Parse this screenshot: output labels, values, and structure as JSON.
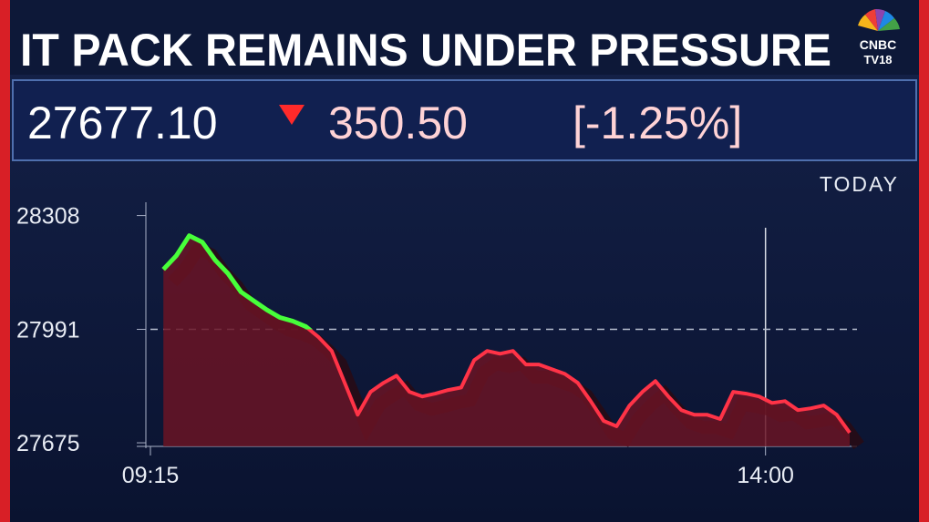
{
  "header": {
    "title": "IT PACK REMAINS UNDER PRESSURE",
    "logo": "CNBC",
    "logo_sub": "TV18"
  },
  "quote": {
    "value": "27677.10",
    "change": "350.50",
    "percent": "[-1.25%]"
  },
  "chart_data": {
    "type": "line",
    "subtitle": "TODAY",
    "x": [
      "09:21",
      "09:27",
      "09:33",
      "09:39",
      "09:45",
      "09:51",
      "09:57",
      "10:03",
      "10:09",
      "10:15",
      "10:21",
      "10:27",
      "10:33",
      "10:39",
      "10:45",
      "10:51",
      "10:57",
      "11:03",
      "11:09",
      "11:15",
      "11:21",
      "11:27",
      "11:33",
      "11:39",
      "11:45",
      "11:51",
      "11:57",
      "12:03",
      "12:09",
      "12:15",
      "12:21",
      "12:27",
      "12:33",
      "12:39",
      "12:45",
      "12:51",
      "12:57",
      "13:03",
      "13:09",
      "13:15",
      "13:21",
      "13:27",
      "13:33",
      "13:39",
      "13:45",
      "13:51",
      "13:57",
      "14:03",
      "14:09",
      "14:15",
      "14:21",
      "14:27",
      "14:33",
      "14:39"
    ],
    "values": [
      28158,
      28196,
      28252,
      28234,
      28184,
      28146,
      28095,
      28070,
      28045,
      28024,
      28014,
      27999,
      27969,
      27931,
      27842,
      27753,
      27817,
      27842,
      27862,
      27817,
      27804,
      27812,
      27822,
      27829,
      27905,
      27931,
      27923,
      27931,
      27893,
      27893,
      27880,
      27867,
      27842,
      27791,
      27736,
      27721,
      27779,
      27817,
      27847,
      27804,
      27766,
      27753,
      27753,
      27741,
      27817,
      27812,
      27804,
      27786,
      27791,
      27766,
      27771,
      27779,
      27753,
      27703
    ],
    "color": "#ff3347",
    "above_color": "#47ff3a",
    "fill_color": "#6a1424",
    "reference_line": 27991,
    "xlim": [
      "09:15",
      "14:39"
    ],
    "xticks": [
      "09:15",
      "14:00"
    ],
    "ylim": [
      27665,
      28345
    ],
    "yticks": [
      27675,
      27991,
      28308
    ]
  }
}
